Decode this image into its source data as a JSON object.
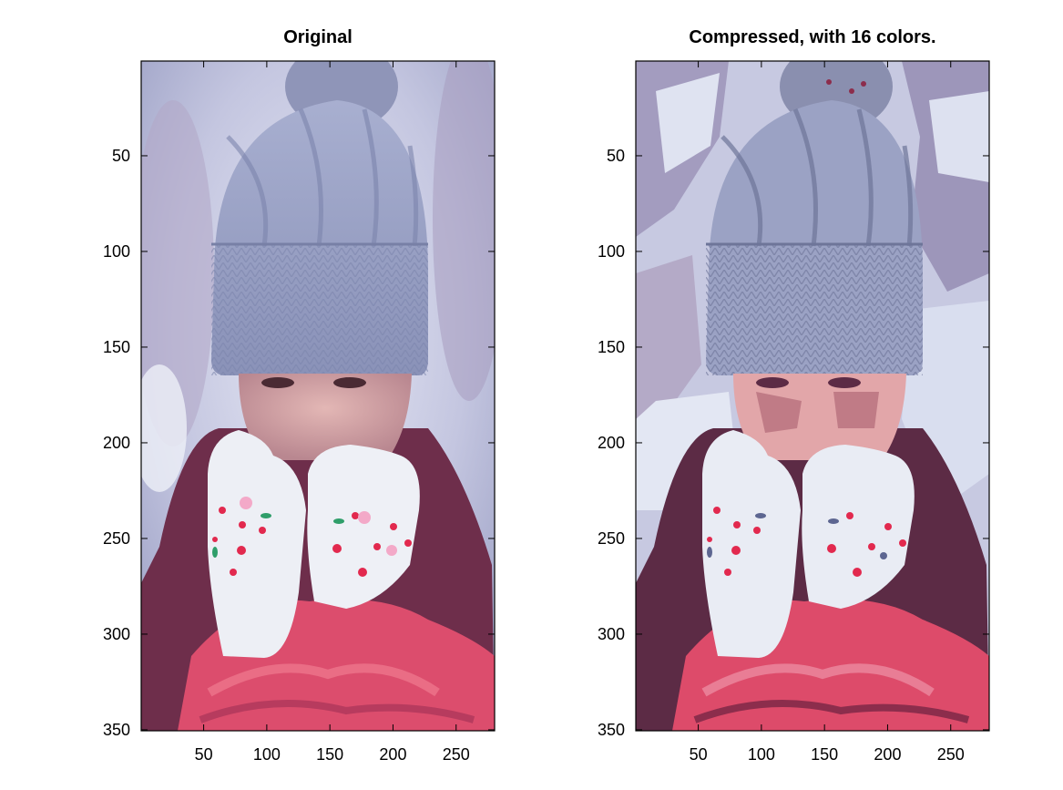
{
  "chart_data": [
    {
      "type": "image",
      "title": "Original",
      "x_ticks": [
        50,
        100,
        150,
        200,
        250
      ],
      "y_ticks": [
        50,
        100,
        150,
        200,
        250,
        300,
        350
      ],
      "xlim": [
        0.5,
        280.5
      ],
      "ylim": [
        0.5,
        350.5
      ],
      "y_direction": "reversed",
      "image_subject": "woman in knit beanie and white gloves covering face, winter background",
      "palette": {
        "sky": "#c9cde6",
        "sky_light": "#e6e9f5",
        "hat": "#9aa3c7",
        "hat_dark": "#6f789f",
        "pompom": "#8d93b5",
        "skin": "#d7a7a9",
        "skin_shadow": "#b9878e",
        "glove": "#eef0f6",
        "hair": "#6a2b47",
        "scarf": "#e0506f",
        "scarf_dark": "#9e2f52",
        "flower_red": "#e2294e",
        "flower_pink": "#f0a8c8",
        "leaf_green": "#2f9e6a"
      }
    },
    {
      "type": "image",
      "title": "Compressed, with 16 colors.",
      "x_ticks": [
        50,
        100,
        150,
        200,
        250
      ],
      "y_ticks": [
        50,
        100,
        150,
        200,
        250,
        300,
        350
      ],
      "xlim": [
        0.5,
        280.5
      ],
      "ylim": [
        0.5,
        350.5
      ],
      "y_direction": "reversed",
      "image_subject": "same image quantized to 16 colors",
      "palette": {
        "sky": "#b9bcd8",
        "sky_light": "#dde2f1",
        "hat": "#9ba2c4",
        "hat_dark": "#6e7599",
        "pompom": "#8a8faf",
        "skin": "#e2a6a9",
        "skin_shadow": "#c07b86",
        "glove": "#e9ecf4",
        "hair": "#5c2b45",
        "scarf": "#e04b6a",
        "scarf_dark": "#8c2d4c",
        "flower_red": "#e2294e",
        "flower_pink": "#e9ecf4",
        "leaf_green": "#5d6691"
      }
    }
  ]
}
